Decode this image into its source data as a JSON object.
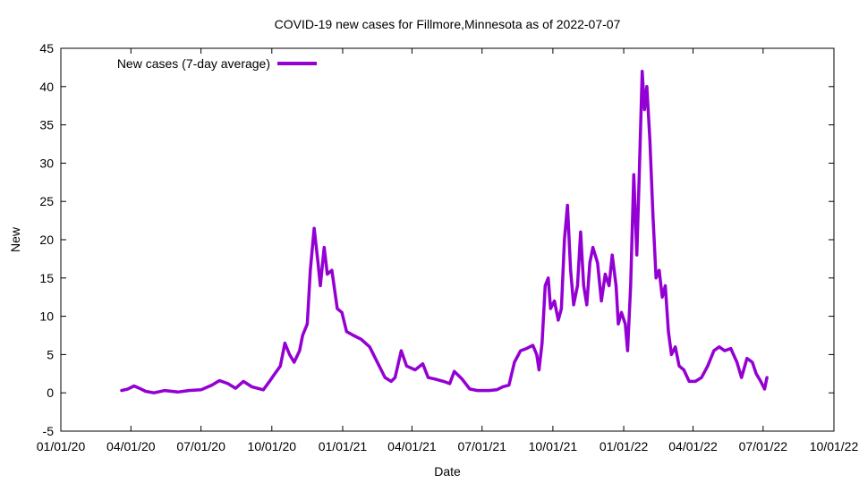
{
  "chart_data": {
    "type": "line",
    "title": "COVID-19 new cases for Fillmore,Minnesota as of 2022-07-07",
    "xlabel": "Date",
    "ylabel": "New",
    "xlim": [
      "2020-01-01",
      "2022-10-01"
    ],
    "ylim": [
      -5,
      45
    ],
    "xticks": [
      "01/01/20",
      "04/01/20",
      "07/01/20",
      "10/01/20",
      "01/01/21",
      "04/01/21",
      "07/01/21",
      "10/01/21",
      "01/01/22",
      "04/01/22",
      "07/01/22",
      "10/01/22"
    ],
    "yticks": [
      -5,
      0,
      5,
      10,
      15,
      20,
      25,
      30,
      35,
      40,
      45
    ],
    "grid": false,
    "legend": "top-left",
    "series": [
      {
        "name": "New cases (7-day average)",
        "color": "#9400d3",
        "points": [
          [
            "2020-03-20",
            0.3
          ],
          [
            "2020-03-28",
            0.5
          ],
          [
            "2020-04-05",
            0.9
          ],
          [
            "2020-04-12",
            0.6
          ],
          [
            "2020-04-20",
            0.2
          ],
          [
            "2020-05-01",
            0.0
          ],
          [
            "2020-05-15",
            0.3
          ],
          [
            "2020-06-01",
            0.1
          ],
          [
            "2020-06-15",
            0.3
          ],
          [
            "2020-07-01",
            0.4
          ],
          [
            "2020-07-15",
            1.0
          ],
          [
            "2020-07-25",
            1.6
          ],
          [
            "2020-08-05",
            1.2
          ],
          [
            "2020-08-15",
            0.6
          ],
          [
            "2020-08-25",
            1.5
          ],
          [
            "2020-09-05",
            0.8
          ],
          [
            "2020-09-20",
            0.4
          ],
          [
            "2020-09-28",
            1.5
          ],
          [
            "2020-10-05",
            2.5
          ],
          [
            "2020-10-12",
            3.5
          ],
          [
            "2020-10-18",
            6.5
          ],
          [
            "2020-10-24",
            5.0
          ],
          [
            "2020-10-30",
            4.0
          ],
          [
            "2020-11-06",
            5.5
          ],
          [
            "2020-11-10",
            7.5
          ],
          [
            "2020-11-16",
            9.0
          ],
          [
            "2020-11-20",
            16.0
          ],
          [
            "2020-11-25",
            21.5
          ],
          [
            "2020-11-30",
            17.0
          ],
          [
            "2020-12-03",
            14.0
          ],
          [
            "2020-12-08",
            19.0
          ],
          [
            "2020-12-12",
            15.5
          ],
          [
            "2020-12-18",
            16.0
          ],
          [
            "2020-12-25",
            11.0
          ],
          [
            "2020-12-31",
            10.5
          ],
          [
            "2021-01-06",
            8.0
          ],
          [
            "2021-01-15",
            7.5
          ],
          [
            "2021-01-25",
            7.0
          ],
          [
            "2021-02-05",
            6.0
          ],
          [
            "2021-02-15",
            4.0
          ],
          [
            "2021-02-25",
            2.0
          ],
          [
            "2021-03-05",
            1.5
          ],
          [
            "2021-03-10",
            2.0
          ],
          [
            "2021-03-18",
            5.5
          ],
          [
            "2021-03-25",
            3.5
          ],
          [
            "2021-04-05",
            3.0
          ],
          [
            "2021-04-15",
            3.8
          ],
          [
            "2021-04-22",
            2.0
          ],
          [
            "2021-05-01",
            1.8
          ],
          [
            "2021-05-12",
            1.5
          ],
          [
            "2021-05-20",
            1.2
          ],
          [
            "2021-05-26",
            2.8
          ],
          [
            "2021-06-05",
            1.8
          ],
          [
            "2021-06-15",
            0.5
          ],
          [
            "2021-06-25",
            0.3
          ],
          [
            "2021-07-10",
            0.3
          ],
          [
            "2021-07-20",
            0.4
          ],
          [
            "2021-07-28",
            0.8
          ],
          [
            "2021-08-05",
            1.0
          ],
          [
            "2021-08-12",
            4.0
          ],
          [
            "2021-08-20",
            5.5
          ],
          [
            "2021-08-28",
            5.8
          ],
          [
            "2021-09-05",
            6.2
          ],
          [
            "2021-09-10",
            5.0
          ],
          [
            "2021-09-13",
            3.0
          ],
          [
            "2021-09-17",
            6.5
          ],
          [
            "2021-09-21",
            14.0
          ],
          [
            "2021-09-25",
            15.0
          ],
          [
            "2021-09-28",
            11.0
          ],
          [
            "2021-10-03",
            12.0
          ],
          [
            "2021-10-08",
            9.5
          ],
          [
            "2021-10-12",
            11.0
          ],
          [
            "2021-10-16",
            20.0
          ],
          [
            "2021-10-20",
            24.5
          ],
          [
            "2021-10-24",
            16.0
          ],
          [
            "2021-10-28",
            11.5
          ],
          [
            "2021-11-02",
            14.0
          ],
          [
            "2021-11-06",
            21.0
          ],
          [
            "2021-11-10",
            14.0
          ],
          [
            "2021-11-14",
            11.5
          ],
          [
            "2021-11-18",
            17.0
          ],
          [
            "2021-11-22",
            19.0
          ],
          [
            "2021-11-28",
            17.0
          ],
          [
            "2021-12-03",
            12.0
          ],
          [
            "2021-12-08",
            15.5
          ],
          [
            "2021-12-13",
            14.0
          ],
          [
            "2021-12-17",
            18.0
          ],
          [
            "2021-12-22",
            14.0
          ],
          [
            "2021-12-25",
            9.0
          ],
          [
            "2021-12-29",
            10.5
          ],
          [
            "2022-01-03",
            9.0
          ],
          [
            "2022-01-06",
            5.5
          ],
          [
            "2022-01-10",
            14.0
          ],
          [
            "2022-01-14",
            28.5
          ],
          [
            "2022-01-18",
            18.0
          ],
          [
            "2022-01-21",
            28.0
          ],
          [
            "2022-01-25",
            42.0
          ],
          [
            "2022-01-28",
            37.0
          ],
          [
            "2022-01-31",
            40.0
          ],
          [
            "2022-02-04",
            33.0
          ],
          [
            "2022-02-08",
            23.0
          ],
          [
            "2022-02-12",
            15.0
          ],
          [
            "2022-02-16",
            16.0
          ],
          [
            "2022-02-20",
            12.5
          ],
          [
            "2022-02-24",
            14.0
          ],
          [
            "2022-02-28",
            8.0
          ],
          [
            "2022-03-04",
            5.0
          ],
          [
            "2022-03-09",
            6.0
          ],
          [
            "2022-03-14",
            3.5
          ],
          [
            "2022-03-20",
            3.0
          ],
          [
            "2022-03-27",
            1.5
          ],
          [
            "2022-04-04",
            1.5
          ],
          [
            "2022-04-12",
            2.0
          ],
          [
            "2022-04-20",
            3.5
          ],
          [
            "2022-04-28",
            5.5
          ],
          [
            "2022-05-05",
            6.0
          ],
          [
            "2022-05-12",
            5.5
          ],
          [
            "2022-05-20",
            5.8
          ],
          [
            "2022-05-28",
            4.0
          ],
          [
            "2022-06-03",
            2.0
          ],
          [
            "2022-06-10",
            4.5
          ],
          [
            "2022-06-17",
            4.0
          ],
          [
            "2022-06-22",
            2.5
          ],
          [
            "2022-06-28",
            1.5
          ],
          [
            "2022-07-03",
            0.5
          ],
          [
            "2022-07-06",
            2.0
          ]
        ]
      }
    ]
  }
}
